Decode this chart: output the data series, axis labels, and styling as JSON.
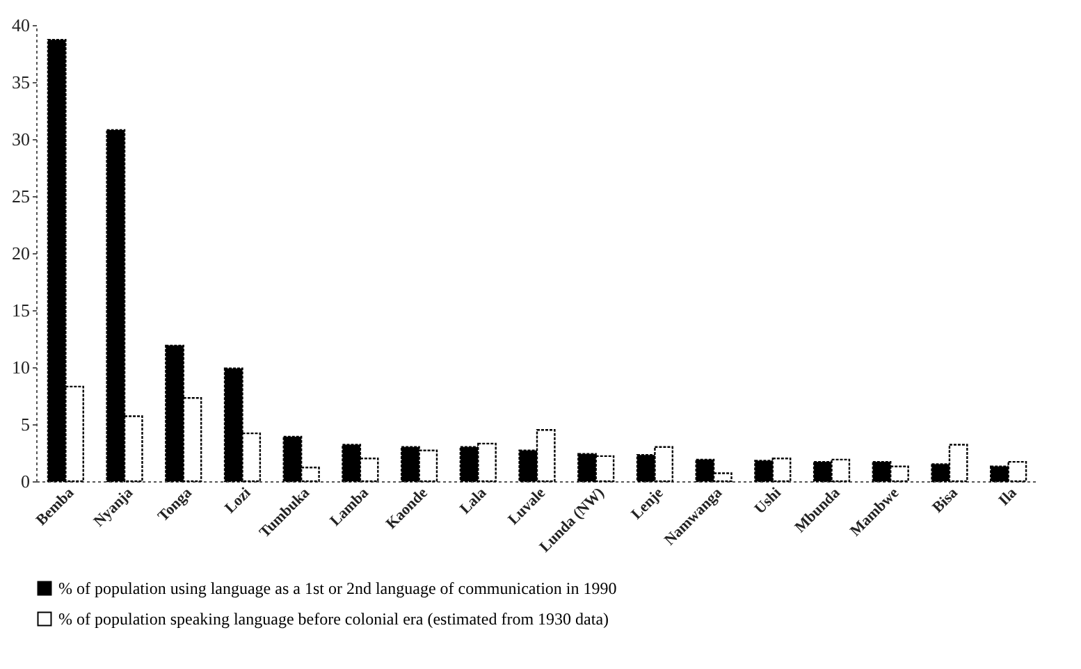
{
  "chart_data": {
    "type": "bar",
    "categories": [
      "Bemba",
      "Nyanja",
      "Tonga",
      "Lozi",
      "Tumbuka",
      "Lamba",
      "Kaonde",
      "Lala",
      "Luvale",
      "Lunda (NW)",
      "Lenje",
      "Namwanga",
      "Ushi",
      "Mbunda",
      "Mambwe",
      "Bisa",
      "Ila"
    ],
    "series": [
      {
        "name": "% of population using language as a 1st or 2nd language of communication in 1990",
        "color": "#000000",
        "values": [
          38.7,
          30.8,
          11.9,
          9.9,
          3.9,
          3.2,
          3.0,
          3.0,
          2.7,
          2.4,
          2.3,
          1.9,
          1.8,
          1.7,
          1.7,
          1.5,
          1.3
        ]
      },
      {
        "name": "% of population speaking language before colonial era (estimated from 1930 data)",
        "color": "#ffffff",
        "values": [
          8.3,
          5.7,
          7.3,
          4.2,
          1.2,
          2.0,
          2.7,
          3.3,
          4.5,
          2.2,
          3.0,
          0.7,
          2.0,
          1.9,
          1.3,
          3.2,
          1.7
        ]
      }
    ],
    "ylim": [
      0,
      40
    ],
    "yticks": [
      0,
      5,
      10,
      15,
      20,
      25,
      30,
      35,
      40
    ],
    "grid": false,
    "legend": "bottom"
  }
}
